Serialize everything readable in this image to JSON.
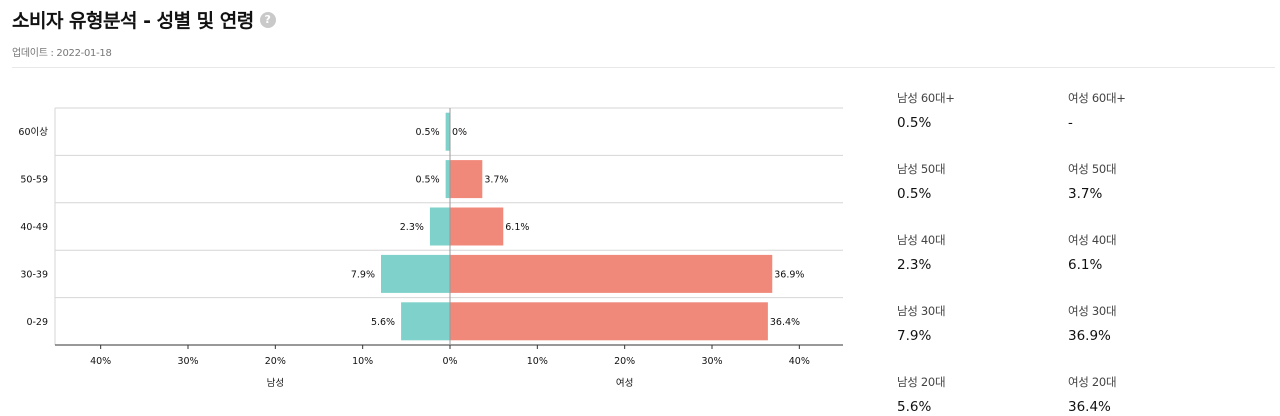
{
  "header": {
    "title": "소비자 유형분석 - 성별 및 연령",
    "help_icon": "?",
    "updated": "업데이트 : 2022-01-18"
  },
  "colors": {
    "male": "#7fd1cb",
    "female": "#f0897a"
  },
  "chart_data": {
    "type": "bar",
    "orientation": "horizontal-diverging",
    "categories": [
      "60이상",
      "50-59",
      "40-49",
      "30-39",
      "0-29"
    ],
    "series": [
      {
        "name": "남성",
        "values": [
          0.5,
          0.5,
          2.3,
          7.9,
          5.6
        ],
        "labels": [
          "0.5%",
          "0.5%",
          "2.3%",
          "7.9%",
          "5.6%"
        ]
      },
      {
        "name": "여성",
        "values": [
          0,
          3.7,
          6.1,
          36.9,
          36.4
        ],
        "labels": [
          "0%",
          "3.7%",
          "6.1%",
          "36.9%",
          "36.4%"
        ]
      }
    ],
    "x_ticks": [
      "40%",
      "30%",
      "20%",
      "10%",
      "0%",
      "10%",
      "20%",
      "30%",
      "40%"
    ],
    "xlim": [
      -45,
      45
    ],
    "x_sublabels": [
      "남성",
      "여성"
    ],
    "grid": true
  },
  "stats": [
    {
      "label": "남성 60대+",
      "value": "0.5%"
    },
    {
      "label": "여성 60대+",
      "value": "-"
    },
    {
      "label": "남성 50대",
      "value": "0.5%"
    },
    {
      "label": "여성 50대",
      "value": "3.7%"
    },
    {
      "label": "남성 40대",
      "value": "2.3%"
    },
    {
      "label": "여성 40대",
      "value": "6.1%"
    },
    {
      "label": "남성 30대",
      "value": "7.9%"
    },
    {
      "label": "여성 30대",
      "value": "36.9%"
    },
    {
      "label": "남성 20대",
      "value": "5.6%"
    },
    {
      "label": "여성 20대",
      "value": "36.4%"
    }
  ]
}
